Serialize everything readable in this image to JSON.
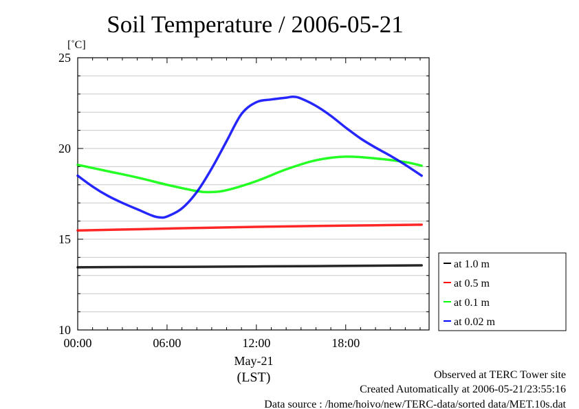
{
  "chart_data": {
    "type": "line",
    "title": "Soil Temperature / 2006-05-21",
    "ylabel": "[˚C]",
    "ylim": [
      10,
      25
    ],
    "yticks": [
      10,
      15,
      20,
      25
    ],
    "xlim": [
      0,
      23.6
    ],
    "xticks": [
      {
        "value": 0,
        "label": "00:00"
      },
      {
        "value": 6,
        "label": "06:00"
      },
      {
        "value": 12,
        "label": "12:00"
      },
      {
        "value": 18,
        "label": "18:00"
      }
    ],
    "xsub": "May-21",
    "xlabel": "(LST)",
    "grid": true,
    "legend_position": "right",
    "series": [
      {
        "name": "at 1.0 m",
        "color": "#000000",
        "x": [
          0,
          4,
          8,
          12,
          16,
          20,
          23.1
        ],
        "y": [
          13.45,
          13.47,
          13.48,
          13.5,
          13.52,
          13.54,
          13.56
        ]
      },
      {
        "name": "at 0.5 m",
        "color": "#ff0000",
        "x": [
          0,
          4,
          8,
          12,
          16,
          20,
          23.1
        ],
        "y": [
          15.48,
          15.55,
          15.62,
          15.68,
          15.73,
          15.77,
          15.8
        ]
      },
      {
        "name": "at 0.1 m",
        "color": "#00ff00",
        "x": [
          0,
          2,
          4,
          6,
          8,
          9,
          10,
          12,
          14,
          16,
          18,
          20,
          22,
          23.1
        ],
        "y": [
          19.1,
          18.75,
          18.4,
          18.0,
          17.65,
          17.6,
          17.7,
          18.2,
          18.85,
          19.35,
          19.55,
          19.45,
          19.25,
          19.05
        ]
      },
      {
        "name": "at 0.02 m",
        "color": "#0000ff",
        "x": [
          0,
          1,
          2,
          3,
          4,
          5,
          5.5,
          6,
          7,
          8,
          9,
          10,
          11,
          12,
          13,
          14,
          14.5,
          15,
          16,
          17,
          18,
          19,
          20,
          21,
          22,
          23.1
        ],
        "y": [
          18.5,
          17.9,
          17.4,
          17.0,
          16.65,
          16.3,
          16.2,
          16.25,
          16.7,
          17.6,
          18.9,
          20.4,
          21.9,
          22.55,
          22.7,
          22.8,
          22.85,
          22.75,
          22.35,
          21.8,
          21.15,
          20.55,
          20.05,
          19.6,
          19.1,
          18.5
        ]
      }
    ]
  },
  "footer": {
    "line1": "Observed at TERC Tower site",
    "line2": "Created Automatically at 2006-05-21/23:55:16",
    "line3": "Data source : /home/hoivo/new/TERC-data/sorted  data/MET.10s.dat"
  }
}
